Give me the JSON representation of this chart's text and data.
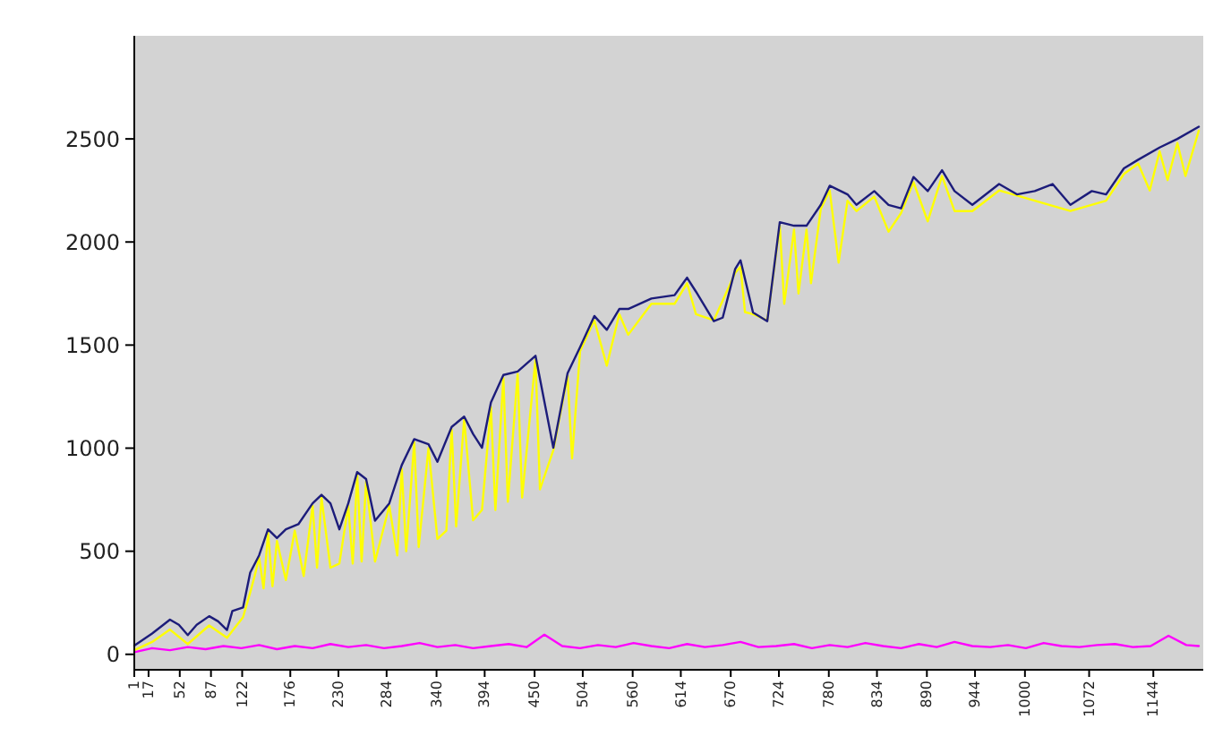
{
  "chart_data": {
    "type": "line",
    "xlim": [
      1,
      1200
    ],
    "xticks": [
      1,
      17,
      52,
      87,
      122,
      176,
      230,
      284,
      340,
      394,
      450,
      504,
      560,
      614,
      670,
      724,
      780,
      834,
      890,
      944,
      1000,
      1072,
      1144
    ],
    "ylim": [
      -75,
      3000
    ],
    "yticks": [
      0,
      500,
      1000,
      1500,
      2000,
      2500
    ],
    "grid": false,
    "line_style": "solid",
    "series": [
      {
        "color": "#ffff00",
        "x": [
          1,
          21,
          41,
          61,
          85,
          105,
          123,
          131,
          136,
          141,
          146,
          151,
          156,
          161,
          171,
          181,
          191,
          201,
          206,
          211,
          221,
          231,
          241,
          246,
          251,
          256,
          261,
          271,
          287,
          296,
          301,
          306,
          315,
          320,
          331,
          341,
          351,
          357,
          362,
          371,
          381,
          391,
          401,
          406,
          415,
          420,
          431,
          436,
          451,
          456,
          471,
          487,
          492,
          501,
          517,
          531,
          545,
          555,
          581,
          607,
          621,
          631,
          651,
          675,
          681,
          686,
          695,
          711,
          725,
          730,
          741,
          746,
          755,
          760,
          771,
          781,
          791,
          801,
          811,
          831,
          847,
          861,
          875,
          891,
          907,
          921,
          941,
          971,
          1011,
          1051,
          1091,
          1111,
          1127,
          1140,
          1151,
          1160,
          1171,
          1180,
          1195
        ],
        "values": [
          20,
          60,
          120,
          50,
          140,
          80,
          180,
          300,
          380,
          470,
          320,
          590,
          330,
          550,
          360,
          600,
          380,
          720,
          420,
          760,
          420,
          440,
          720,
          440,
          870,
          450,
          840,
          450,
          720,
          480,
          900,
          500,
          1030,
          520,
          1000,
          560,
          600,
          1090,
          620,
          1140,
          650,
          700,
          1200,
          700,
          1340,
          740,
          1360,
          760,
          1430,
          800,
          990,
          1350,
          950,
          1470,
          1620,
          1400,
          1650,
          1550,
          1700,
          1700,
          1800,
          1650,
          1620,
          1850,
          1880,
          1660,
          1650,
          1620,
          2080,
          1700,
          2060,
          1750,
          2060,
          1800,
          2160,
          2250,
          1900,
          2200,
          2150,
          2220,
          2050,
          2140,
          2290,
          2100,
          2320,
          2150,
          2150,
          2250,
          2200,
          2150,
          2200,
          2330,
          2380,
          2250,
          2440,
          2300,
          2480,
          2320,
          2540
        ]
      },
      {
        "color": "#1c1c7a",
        "x": [
          1,
          21,
          41,
          51,
          61,
          71,
          85,
          95,
          105,
          111,
          123,
          131,
          141,
          151,
          161,
          171,
          185,
          201,
          211,
          221,
          231,
          241,
          251,
          261,
          271,
          287,
          301,
          315,
          331,
          341,
          357,
          371,
          381,
          391,
          401,
          415,
          431,
          451,
          471,
          487,
          501,
          517,
          531,
          545,
          555,
          581,
          607,
          621,
          631,
          651,
          661,
          675,
          681,
          695,
          711,
          725,
          741,
          755,
          771,
          781,
          801,
          811,
          831,
          847,
          861,
          875,
          891,
          907,
          921,
          941,
          971,
          991,
          1011,
          1031,
          1051,
          1075,
          1091,
          1111,
          1127,
          1151,
          1171,
          1195
        ],
        "values": [
          42,
          101,
          168,
          143,
          93,
          143,
          185,
          160,
          118,
          210,
          227,
          396,
          480,
          606,
          564,
          606,
          631,
          732,
          774,
          732,
          606,
          732,
          884,
          850,
          648,
          732,
          918,
          1044,
          1019,
          934,
          1103,
          1153,
          1069,
          1002,
          1221,
          1355,
          1372,
          1448,
          1002,
          1364,
          1490,
          1641,
          1574,
          1675,
          1675,
          1726,
          1742,
          1827,
          1759,
          1616,
          1633,
          1869,
          1911,
          1658,
          1616,
          2096,
          2079,
          2079,
          2180,
          2273,
          2231,
          2180,
          2247,
          2180,
          2163,
          2315,
          2247,
          2348,
          2247,
          2180,
          2281,
          2231,
          2247,
          2281,
          2180,
          2247,
          2231,
          2357,
          2399,
          2458,
          2500,
          2559
        ]
      },
      {
        "color": "#ff00ff",
        "x": [
          1,
          21,
          41,
          61,
          81,
          101,
          121,
          141,
          161,
          181,
          201,
          221,
          241,
          261,
          281,
          301,
          321,
          341,
          361,
          381,
          401,
          421,
          441,
          461,
          481,
          501,
          521,
          541,
          561,
          581,
          601,
          621,
          641,
          661,
          681,
          701,
          721,
          741,
          761,
          781,
          801,
          821,
          841,
          861,
          881,
          901,
          921,
          941,
          961,
          981,
          1001,
          1021,
          1041,
          1061,
          1081,
          1101,
          1121,
          1141,
          1161,
          1181,
          1195
        ],
        "values": [
          10,
          30,
          20,
          35,
          25,
          40,
          30,
          45,
          25,
          40,
          30,
          50,
          35,
          45,
          30,
          40,
          55,
          35,
          45,
          30,
          40,
          50,
          35,
          95,
          40,
          30,
          45,
          35,
          55,
          40,
          30,
          50,
          35,
          45,
          60,
          35,
          40,
          50,
          30,
          45,
          35,
          55,
          40,
          30,
          50,
          35,
          60,
          40,
          35,
          45,
          30,
          55,
          40,
          35,
          45,
          50,
          35,
          40,
          90,
          45,
          40
        ]
      }
    ]
  }
}
